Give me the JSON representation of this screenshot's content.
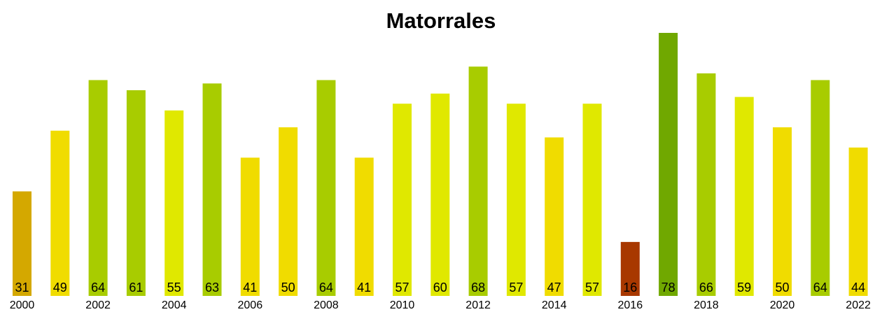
{
  "chart_data": {
    "type": "bar",
    "title": "Matorrales",
    "categories": [
      "2000",
      null,
      "2002",
      null,
      "2004",
      null,
      "2006",
      null,
      "2008",
      null,
      "2010",
      null,
      "2012",
      null,
      "2014",
      null,
      "2016",
      null,
      "2018",
      null,
      "2020",
      null,
      "2022"
    ],
    "values": [
      31,
      49,
      64,
      61,
      55,
      63,
      41,
      50,
      64,
      41,
      57,
      60,
      68,
      57,
      47,
      57,
      16,
      78,
      66,
      59,
      50,
      64,
      44
    ],
    "colors": [
      "#d4a800",
      "#f0dc00",
      "#a8cc00",
      "#a8cc00",
      "#e0e800",
      "#a8cc00",
      "#f0dc00",
      "#f0dc00",
      "#a8cc00",
      "#f0dc00",
      "#e0e800",
      "#e0e800",
      "#a8cc00",
      "#e0e800",
      "#f0dc00",
      "#e0e800",
      "#a83800",
      "#70a800",
      "#a8cc00",
      "#e0e800",
      "#f0dc00",
      "#a8cc00",
      "#f0dc00"
    ]
  }
}
